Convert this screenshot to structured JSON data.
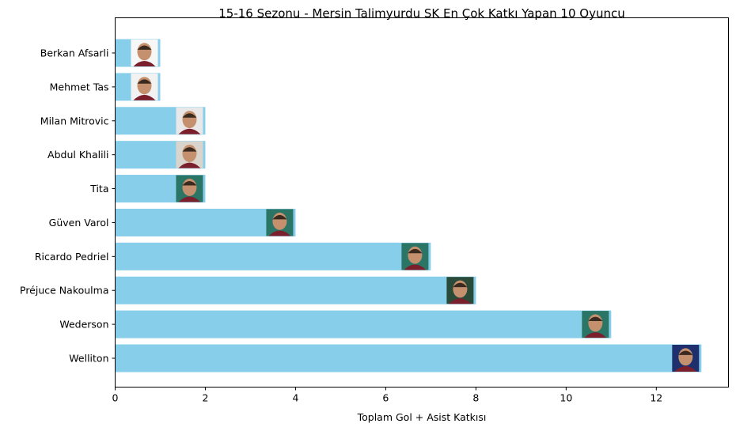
{
  "chart_data": {
    "type": "bar",
    "orientation": "horizontal",
    "title": "15-16 Sezonu - Mersin Talimyurdu SK En Çok Katkı Yapan 10 Oyuncu",
    "xlabel": "Toplam Gol + Asist Katkısı",
    "ylabel": "",
    "xlim": [
      0,
      13.6
    ],
    "xticks": [
      0,
      2,
      4,
      6,
      8,
      10,
      12
    ],
    "bar_color": "#87CEEB",
    "categories": [
      "Welliton",
      "Wederson",
      "Préjuce Nakoulma",
      "Ricardo Pedriel",
      "Güven Varol",
      "Tita",
      "Abdul Khalili",
      "Milan Mitrovic",
      "Mehmet Tas",
      "Berkan Afsarli"
    ],
    "values": [
      13,
      11,
      8,
      7,
      4,
      2,
      2,
      2,
      1,
      1
    ],
    "player_photo_colors": [
      "#1f2f6e",
      "#2a7565",
      "#2a4a3a",
      "#2a7565",
      "#2a7565",
      "#2a7565",
      "#d9d4cc",
      "#e8e8e8",
      "#f2f2f2",
      "#f7f7f7"
    ],
    "grid": false,
    "legend": "none"
  }
}
